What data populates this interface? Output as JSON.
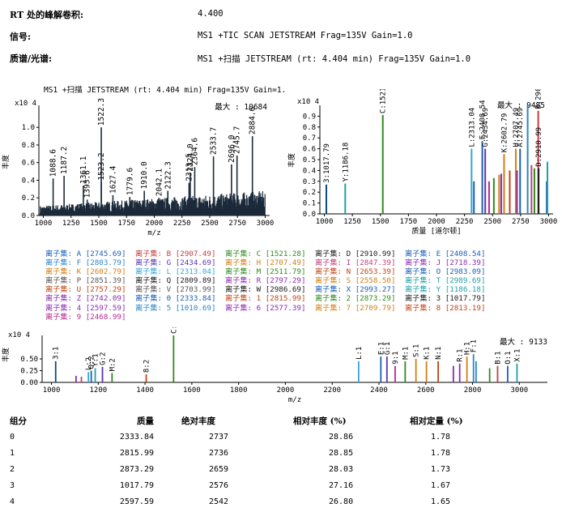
{
  "header": {
    "rt_label": "RT 处的峰解卷积:",
    "rt_value": "4.400",
    "signal_label": "信号:",
    "signal_value": "MS1 +TIC SCAN JETSTREAM Frag=135V Gain=1.0",
    "spectrum_label": "质谱/光谱:",
    "spectrum_value": "MS1 +扫描 JETSTREAM (rt: 4.404 min) Frag=135V Gain=1.0"
  },
  "chart_data": [
    {
      "id": "ms1-spectrum",
      "type": "bar",
      "title": "MS1 +扫描 JETSTREAM (rt: 4.404 min) Frag=135V Gain=1.",
      "xlabel": "m/z",
      "ylabel": "丰度",
      "y_exponent": "x10 4",
      "max_label": "最大 : 10684",
      "xlim": [
        960,
        3040
      ],
      "ylim": [
        0,
        1.25
      ],
      "xticks": [
        1000,
        1250,
        1500,
        1750,
        2000,
        2250,
        2500,
        2750,
        3000
      ],
      "yticks": [
        0.0,
        0.2,
        0.4,
        0.6,
        0.8,
        1.0
      ],
      "color": "#1b2a3a",
      "labeled_peaks": [
        {
          "x": 1088.6,
          "y": 0.42,
          "label": "1088.6"
        },
        {
          "x": 1187.2,
          "y": 0.45,
          "label": "1187.2"
        },
        {
          "x": 1361.1,
          "y": 0.34,
          "label": "1361.1"
        },
        {
          "x": 1395.6,
          "y": 0.18,
          "label": "1395.6"
        },
        {
          "x": 1522.3,
          "y": 1.0,
          "label": "1522.3"
        },
        {
          "x": 1523.2,
          "y": 0.38,
          "label": "1523.2"
        },
        {
          "x": 1627.4,
          "y": 0.23,
          "label": "1627.4"
        },
        {
          "x": 1779.6,
          "y": 0.21,
          "label": "1779.6"
        },
        {
          "x": 1910.0,
          "y": 0.28,
          "label": "1910.0"
        },
        {
          "x": 2042.1,
          "y": 0.2,
          "label": "2042.1"
        },
        {
          "x": 2122.3,
          "y": 0.28,
          "label": "2122.3"
        },
        {
          "x": 2313.5,
          "y": 0.37,
          "label": "2313.5"
        },
        {
          "x": 2324.0,
          "y": 0.48,
          "label": "2324.0"
        },
        {
          "x": 2364.6,
          "y": 0.55,
          "label": "2364.6"
        },
        {
          "x": 2533.7,
          "y": 0.67,
          "label": "2533.7"
        },
        {
          "x": 2696.0,
          "y": 0.58,
          "label": "2696.0"
        },
        {
          "x": 2745.7,
          "y": 0.68,
          "label": "2745.7"
        },
        {
          "x": 2884.6,
          "y": 0.9,
          "label": "2884.6"
        }
      ]
    },
    {
      "id": "deconvolved-spectrum",
      "type": "bar",
      "xlabel": "质量 [道尔顿]",
      "ylabel": "丰度",
      "y_exponent": "x10 4",
      "max_label": "最大 : 9485",
      "xlim": [
        960,
        3040
      ],
      "ylim": [
        0,
        1.0
      ],
      "xticks": [
        1000,
        1250,
        1500,
        1750,
        2000,
        2250,
        2500,
        2750,
        3000
      ],
      "yticks": [
        0.0,
        0.1,
        0.2,
        0.3,
        0.4,
        0.5,
        0.6,
        0.7,
        0.8,
        0.9
      ],
      "peaks": [
        {
          "x": 1017.79,
          "y": 0.27,
          "label": "3:1017.79",
          "color": "#0d4a78"
        },
        {
          "x": 1186.18,
          "y": 0.28,
          "label": "Y:1186.18",
          "color": "#1fa0a8"
        },
        {
          "x": 1521.28,
          "y": 0.91,
          "label": "C:1521.28",
          "color": "#2f8a1e"
        },
        {
          "x": 2313.04,
          "y": 0.6,
          "label": "L:2313.04",
          "color": "#35a4d8"
        },
        {
          "x": 2333.84,
          "y": 0.3,
          "label": "",
          "color": "#1a5fb4"
        },
        {
          "x": 2408.54,
          "y": 0.67,
          "label": "E:2408.54",
          "color": "#1a5fb4"
        },
        {
          "x": 2434.69,
          "y": 0.6,
          "label": "G:2434.69",
          "color": "#5a34b0"
        },
        {
          "x": 2468.99,
          "y": 0.3,
          "label": "",
          "color": "#b42a8c"
        },
        {
          "x": 2511.79,
          "y": 0.33,
          "label": "",
          "color": "#2f8a1e"
        },
        {
          "x": 2558.5,
          "y": 0.36,
          "label": "",
          "color": "#d07f15"
        },
        {
          "x": 2577.39,
          "y": 0.37,
          "label": "",
          "color": "#8b2bb0"
        },
        {
          "x": 2602.79,
          "y": 0.55,
          "label": "K:2602.79",
          "color": "#d07f15"
        },
        {
          "x": 2653.39,
          "y": 0.4,
          "label": "",
          "color": "#c04515"
        },
        {
          "x": 2707.49,
          "y": 0.6,
          "label": "H:2707.49",
          "color": "#d07f15"
        },
        {
          "x": 2718.39,
          "y": 0.4,
          "label": "",
          "color": "#8b2bb0"
        },
        {
          "x": 2745.69,
          "y": 0.6,
          "label": "A:2745.69",
          "color": "#1a5fb4"
        },
        {
          "x": 2813.19,
          "y": 1.0,
          "label": "",
          "color": "#2a86c8"
        },
        {
          "x": 2847.39,
          "y": 0.45,
          "label": "",
          "color": "#c43e7a"
        },
        {
          "x": 2873.29,
          "y": 0.42,
          "label": "",
          "color": "#2f8a1e"
        },
        {
          "x": 2907.49,
          "y": 0.95,
          "label": "B:2907.49",
          "color": "#c43e3e"
        },
        {
          "x": 2910.99,
          "y": 0.42,
          "label": "D:2910.99",
          "color": "#1b1b1b"
        },
        {
          "x": 2983.09,
          "y": 0.3,
          "label": "",
          "color": "#1a5fb4"
        },
        {
          "x": 2989.69,
          "y": 0.48,
          "label": "",
          "color": "#1fa0a8"
        }
      ]
    },
    {
      "id": "fragment-spectrum",
      "type": "bar",
      "xlabel": "m/z",
      "ylabel": "丰度",
      "y_exponent": "x10 4",
      "max_label": "最大 : 9133",
      "xlim": [
        960,
        3120
      ],
      "ylim": [
        0,
        1.0
      ],
      "xticks": [
        1000,
        1200,
        1400,
        1600,
        1800,
        2000,
        2200,
        2400,
        2600,
        2800,
        3000
      ],
      "yticks": [
        0.0,
        0.25,
        0.5
      ],
      "peaks": [
        {
          "x": 1018,
          "y": 0.45,
          "label": "3:1",
          "color": "#0d4a78"
        },
        {
          "x": 1105,
          "y": 0.14,
          "label": "",
          "color": "#8b2bb0"
        },
        {
          "x": 1128,
          "y": 0.12,
          "label": "",
          "color": "#c43e7a"
        },
        {
          "x": 1158,
          "y": 0.22,
          "label": "L:2",
          "color": "#35a4d8"
        },
        {
          "x": 1170,
          "y": 0.25,
          "label": "O:2",
          "color": "#1a5fb4"
        },
        {
          "x": 1187,
          "y": 0.3,
          "label": "Y:1",
          "color": "#1fa0a8"
        },
        {
          "x": 1218,
          "y": 0.33,
          "label": "G:2",
          "color": "#5a34b0"
        },
        {
          "x": 1259,
          "y": 0.2,
          "label": "M:2",
          "color": "#2f8a1e"
        },
        {
          "x": 1405,
          "y": 0.17,
          "label": "8:2",
          "color": "#c04515"
        },
        {
          "x": 1522,
          "y": 1.0,
          "label": "C:1",
          "color": "#2f8a1e"
        },
        {
          "x": 2313,
          "y": 0.45,
          "label": "L:1",
          "color": "#35a4d8"
        },
        {
          "x": 2408,
          "y": 0.55,
          "label": "E:1",
          "color": "#1a5fb4"
        },
        {
          "x": 2434,
          "y": 0.55,
          "label": "G:1",
          "color": "#5a34b0"
        },
        {
          "x": 2469,
          "y": 0.35,
          "label": "9:1",
          "color": "#b42a8c"
        },
        {
          "x": 2512,
          "y": 0.45,
          "label": "M:1",
          "color": "#2f8a1e"
        },
        {
          "x": 2558,
          "y": 0.5,
          "label": "S:1",
          "color": "#d07f15"
        },
        {
          "x": 2603,
          "y": 0.45,
          "label": "K:1",
          "color": "#d07f15"
        },
        {
          "x": 2653,
          "y": 0.45,
          "label": "N:1",
          "color": "#c04515"
        },
        {
          "x": 2718,
          "y": 0.35,
          "label": "",
          "color": "#8b2bb0"
        },
        {
          "x": 2745,
          "y": 0.4,
          "label": "R:1",
          "color": "#8b2bb0"
        },
        {
          "x": 2776,
          "y": 0.55,
          "label": "H:1",
          "color": "#d07f15"
        },
        {
          "x": 2804,
          "y": 0.6,
          "label": "F:1",
          "color": "#2a86c8"
        },
        {
          "x": 2815,
          "y": 0.45,
          "label": "",
          "color": "#2a86c8"
        },
        {
          "x": 2873,
          "y": 0.3,
          "label": "",
          "color": "#2f8a1e"
        },
        {
          "x": 2907,
          "y": 0.35,
          "label": "B:1",
          "color": "#c43e3e"
        },
        {
          "x": 2950,
          "y": 0.35,
          "label": "O:1",
          "color": "#1a5fb4"
        },
        {
          "x": 2990,
          "y": 0.4,
          "label": "X:1",
          "color": "#1fa0a8"
        }
      ]
    }
  ],
  "ion_sets": [
    {
      "prefix": "离子集:",
      "id": "A",
      "mass": "[2745.69]",
      "color": "#1a5fb4"
    },
    {
      "prefix": "离子集:",
      "id": "B",
      "mass": "[2907.49]",
      "color": "#c43e3e"
    },
    {
      "prefix": "离子集:",
      "id": "C",
      "mass": "[1521.28]",
      "color": "#2f8a1e"
    },
    {
      "prefix": "离子集:",
      "id": "D",
      "mass": "[2910.99]",
      "color": "#1b1b1b"
    },
    {
      "prefix": "离子集:",
      "id": "E",
      "mass": "[2408.54]",
      "color": "#1a5fb4"
    },
    {
      "prefix": "离子集:",
      "id": "F",
      "mass": "[2803.79]",
      "color": "#2a86c8"
    },
    {
      "prefix": "离子集:",
      "id": "G",
      "mass": "[2434.69]",
      "color": "#5a34b0"
    },
    {
      "prefix": "离子集:",
      "id": "H",
      "mass": "[2707.49]",
      "color": "#d07f15"
    },
    {
      "prefix": "离子集:",
      "id": "I",
      "mass": "[2847.39]",
      "color": "#c43e7a"
    },
    {
      "prefix": "离子集:",
      "id": "J",
      "mass": "[2718.39]",
      "color": "#8b2bb0"
    },
    {
      "prefix": "离子集:",
      "id": "K",
      "mass": "[2602.79]",
      "color": "#d07f15"
    },
    {
      "prefix": "离子集:",
      "id": "L",
      "mass": "[2313.04]",
      "color": "#35a4d8"
    },
    {
      "prefix": "离子集:",
      "id": "M",
      "mass": "[2511.79]",
      "color": "#2f8a1e"
    },
    {
      "prefix": "离子集:",
      "id": "N",
      "mass": "[2653.39]",
      "color": "#c04515"
    },
    {
      "prefix": "离子集:",
      "id": "O",
      "mass": "[2983.09]",
      "color": "#1a5fb4"
    },
    {
      "prefix": "离子集:",
      "id": "P",
      "mass": "[2851.39]",
      "color": "#555555"
    },
    {
      "prefix": "离子集:",
      "id": "Q",
      "mass": "[2809.89]",
      "color": "#1b1b1b"
    },
    {
      "prefix": "离子集:",
      "id": "R",
      "mass": "[2797.29]",
      "color": "#8b2bb0"
    },
    {
      "prefix": "离子集:",
      "id": "S",
      "mass": "[2558.50]",
      "color": "#d07f15"
    },
    {
      "prefix": "离子集:",
      "id": "T",
      "mass": "[2989.69]",
      "color": "#1fa0a8"
    },
    {
      "prefix": "离子集:",
      "id": "U",
      "mass": "[2757.29]",
      "color": "#c04515"
    },
    {
      "prefix": "离子集:",
      "id": "V",
      "mass": "[2703.99]",
      "color": "#555555"
    },
    {
      "prefix": "离子集:",
      "id": "W",
      "mass": "[2986.69]",
      "color": "#1b1b1b"
    },
    {
      "prefix": "离子集:",
      "id": "X",
      "mass": "[2993.27]",
      "color": "#1a5fb4"
    },
    {
      "prefix": "离子集:",
      "id": "Y",
      "mass": "[1186.18]",
      "color": "#1fa0a8"
    },
    {
      "prefix": "离子集:",
      "id": "Z",
      "mass": "[2742.09]",
      "color": "#8b2bb0"
    },
    {
      "prefix": "离子集:",
      "id": "0",
      "mass": "[2333.84]",
      "color": "#1a5fb4"
    },
    {
      "prefix": "离子集:",
      "id": "1",
      "mass": "[2815.99]",
      "color": "#c04515"
    },
    {
      "prefix": "离子集:",
      "id": "2",
      "mass": "[2873.29]",
      "color": "#2f8a1e"
    },
    {
      "prefix": "离子集:",
      "id": "3",
      "mass": "[1017.79]",
      "color": "#1b1b1b"
    },
    {
      "prefix": "离子集:",
      "id": "4",
      "mass": "[2597.59]",
      "color": "#8b2bb0"
    },
    {
      "prefix": "离子集:",
      "id": "5",
      "mass": "[1010.69]",
      "color": "#2a86c8"
    },
    {
      "prefix": "离子集:",
      "id": "6",
      "mass": "[2577.39]",
      "color": "#8b2bb0"
    },
    {
      "prefix": "离子集:",
      "id": "7",
      "mass": "[2709.79]",
      "color": "#d07f15"
    },
    {
      "prefix": "离子集:",
      "id": "8",
      "mass": "[2813.19]",
      "color": "#c04515"
    },
    {
      "prefix": "离子集:",
      "id": "9",
      "mass": "[2468.99]",
      "color": "#b42a8c"
    }
  ],
  "components_table": {
    "headers": [
      "组分",
      "质量",
      "绝对丰度",
      "相对丰度 (%)",
      "相对定量 (%)"
    ],
    "rows": [
      [
        "0",
        "2333.84",
        "2737",
        "28.86",
        "1.78"
      ],
      [
        "1",
        "2815.99",
        "2736",
        "28.85",
        "1.78"
      ],
      [
        "2",
        "2873.29",
        "2659",
        "28.03",
        "1.73"
      ],
      [
        "3",
        "1017.79",
        "2576",
        "27.16",
        "1.67"
      ],
      [
        "4",
        "2597.59",
        "2542",
        "26.80",
        "1.65"
      ]
    ]
  }
}
